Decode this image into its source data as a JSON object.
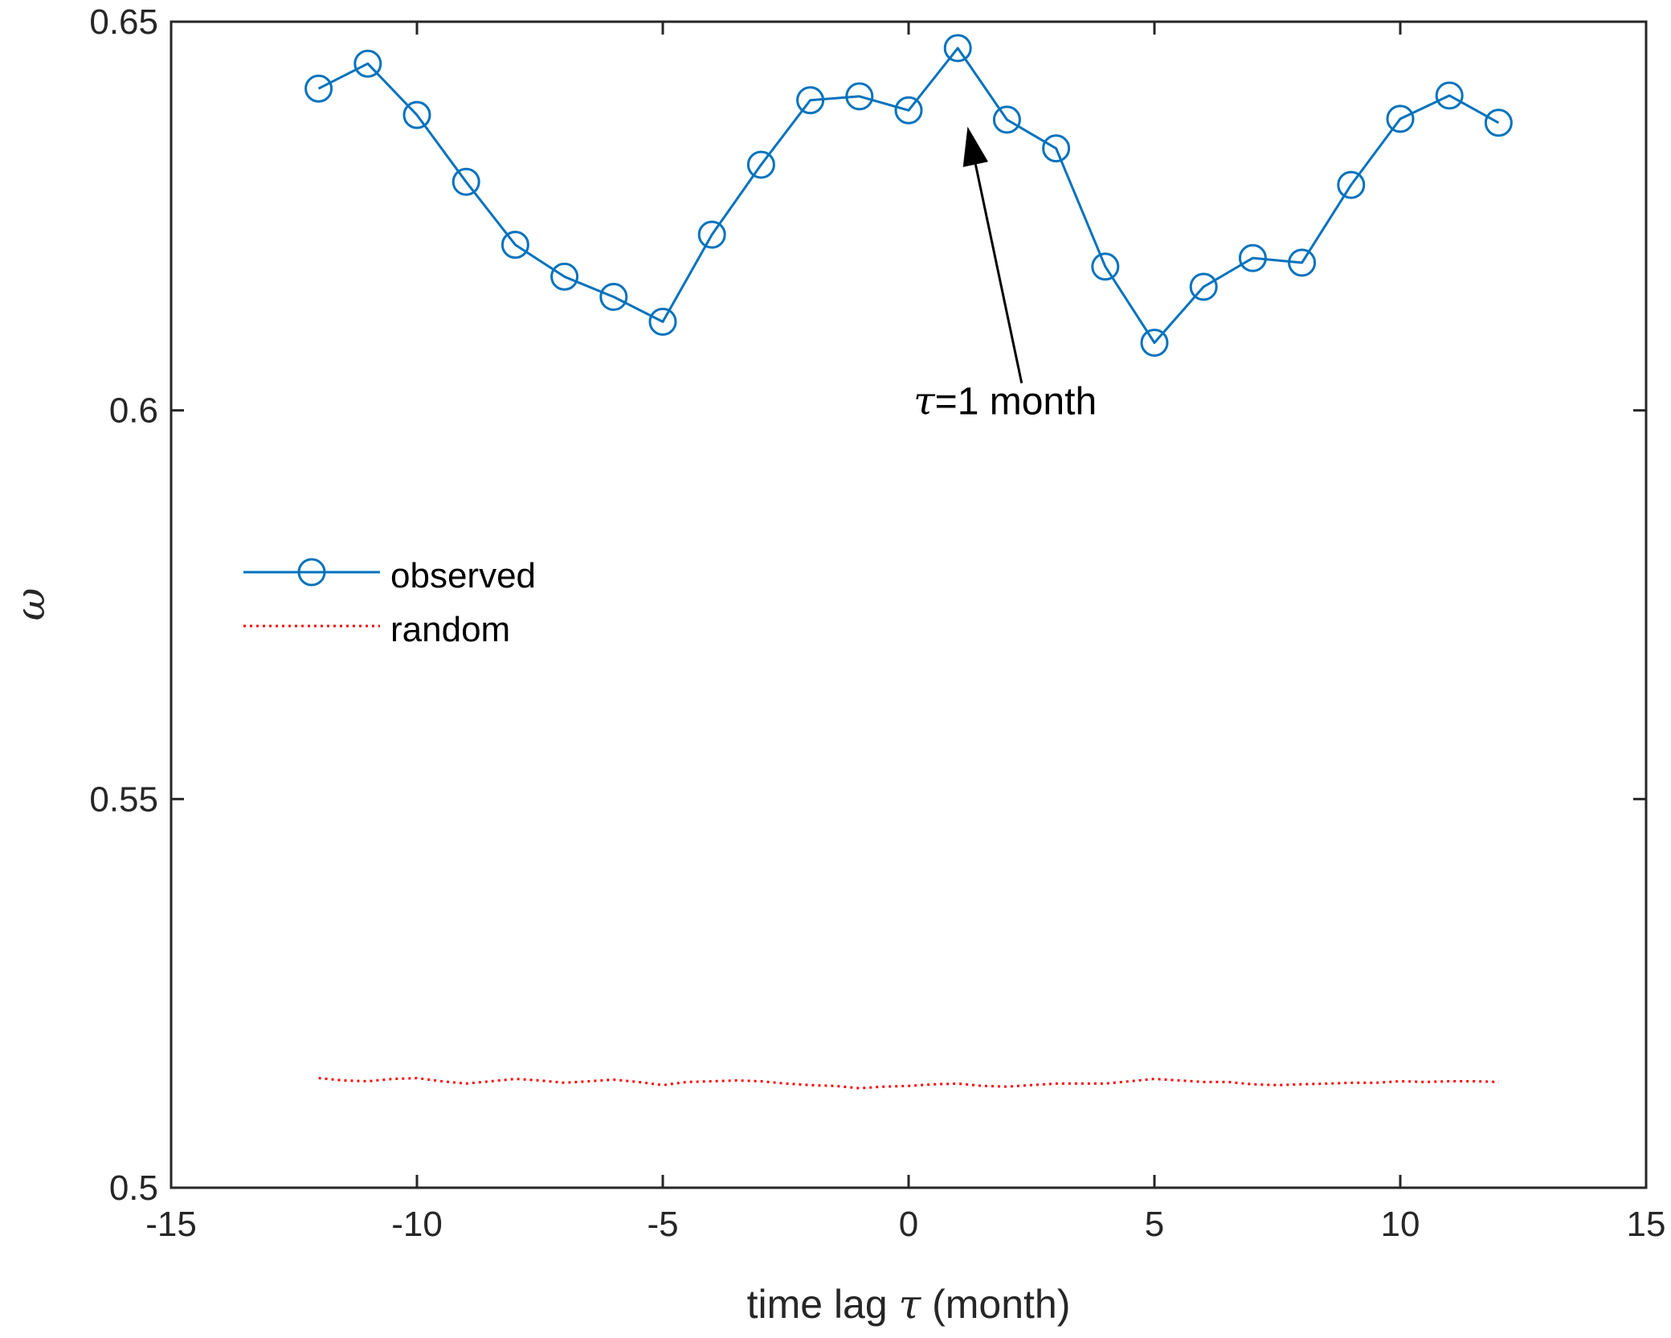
{
  "chart_data": {
    "type": "line",
    "title": "",
    "xlabel_prefix": "time lag ",
    "xlabel_symbol": "τ",
    "xlabel_suffix": " (month)",
    "ylabel": "ω",
    "xlim": [
      -15,
      15
    ],
    "ylim": [
      0.5,
      0.65
    ],
    "xticks": [
      -15,
      -10,
      -5,
      0,
      5,
      10,
      15
    ],
    "xtick_labels": [
      "-15",
      "-10",
      "-5",
      "0",
      "5",
      "10",
      "15"
    ],
    "yticks": [
      0.5,
      0.55,
      0.6,
      0.65
    ],
    "ytick_labels": [
      "0.5",
      "0.55",
      "0.6",
      "0.65"
    ],
    "grid": false,
    "legend_position": "left",
    "x": [
      -12,
      -11,
      -10,
      -9,
      -8,
      -7,
      -6,
      -5,
      -4,
      -3,
      -2,
      -1,
      0,
      1,
      2,
      3,
      4,
      5,
      6,
      7,
      8,
      9,
      10,
      11,
      12
    ],
    "series": [
      {
        "name": "observed",
        "color": "#0072BD",
        "style": "solid",
        "marker": "circle",
        "values": [
          0.6414,
          0.6446,
          0.638,
          0.6294,
          0.6213,
          0.6172,
          0.6146,
          0.6114,
          0.6226,
          0.6316,
          0.6399,
          0.6404,
          0.6386,
          0.6466,
          0.6374,
          0.6337,
          0.6185,
          0.6087,
          0.6159,
          0.6196,
          0.619,
          0.629,
          0.6375,
          0.6405,
          0.637
        ]
      },
      {
        "name": "random",
        "color": "#FF0000",
        "style": "dotted",
        "marker": "none",
        "x": [
          -12,
          -11.5,
          -11,
          -10.5,
          -10,
          -9.5,
          -9,
          -8.5,
          -8,
          -7.5,
          -7,
          -6.5,
          -6,
          -5.5,
          -5,
          -4.5,
          -4,
          -3.5,
          -3,
          -2.5,
          -2,
          -1.5,
          -1,
          -0.5,
          0,
          0.5,
          1,
          1.5,
          2,
          2.5,
          3,
          3.5,
          4,
          4.5,
          5,
          5.5,
          6,
          6.5,
          7,
          7.5,
          8,
          8.5,
          9,
          9.5,
          10,
          10.5,
          11,
          11.5,
          12
        ],
        "values": [
          0.5141,
          0.5138,
          0.5137,
          0.514,
          0.5141,
          0.5137,
          0.5134,
          0.5137,
          0.514,
          0.5138,
          0.5135,
          0.5137,
          0.5139,
          0.5136,
          0.5132,
          0.5136,
          0.5137,
          0.5138,
          0.5137,
          0.5134,
          0.5132,
          0.5131,
          0.5128,
          0.513,
          0.5131,
          0.5133,
          0.5134,
          0.5131,
          0.513,
          0.5132,
          0.5134,
          0.5134,
          0.5134,
          0.5137,
          0.514,
          0.5138,
          0.5136,
          0.5136,
          0.5133,
          0.5132,
          0.5133,
          0.5134,
          0.5135,
          0.5135,
          0.5137,
          0.5136,
          0.5137,
          0.5137,
          0.5136
        ]
      }
    ],
    "annotation": {
      "symbol": "τ",
      "text": "=1 month",
      "arrow_to": [
        1.2,
        0.6365
      ],
      "arrow_from": [
        2.3,
        0.6035
      ],
      "text_at": [
        0.1,
        0.5995
      ]
    }
  }
}
